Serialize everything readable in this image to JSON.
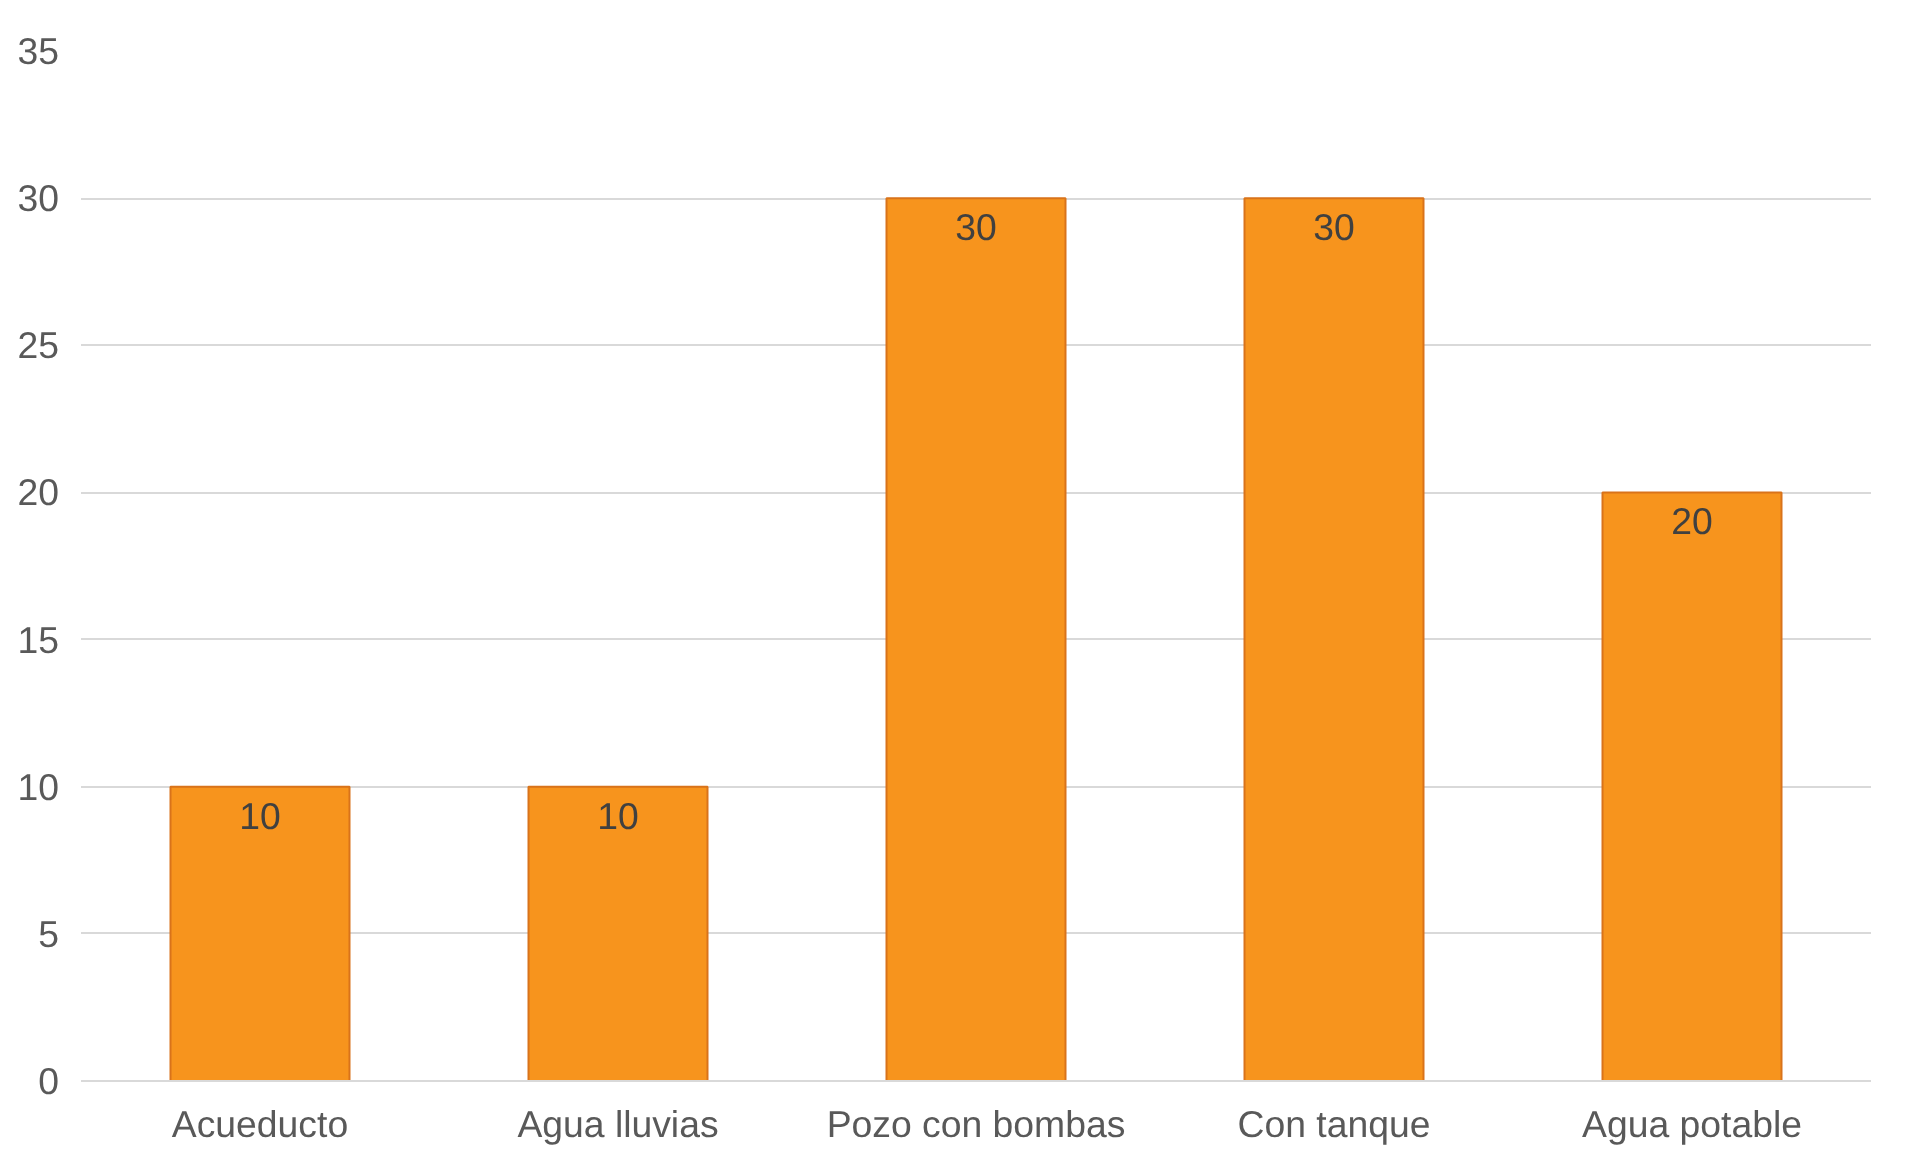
{
  "chart_data": {
    "type": "bar",
    "categories": [
      "Acueducto",
      "Agua lluvias",
      "Pozo con bombas",
      "Con tanque",
      "Agua potable"
    ],
    "values": [
      10,
      10,
      30,
      30,
      20
    ],
    "color": "#f7941d",
    "ylim": [
      0,
      35
    ],
    "yticks": [
      0,
      5,
      10,
      15,
      20,
      25,
      30,
      35
    ],
    "grid": "y",
    "data_labels": true
  }
}
